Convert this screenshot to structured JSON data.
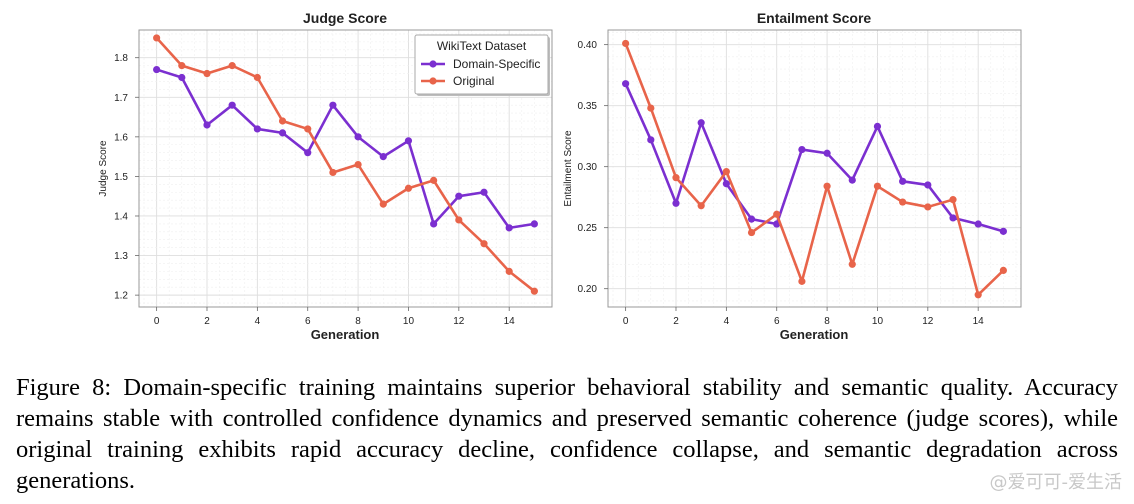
{
  "chart_data": [
    {
      "type": "line",
      "title": "Judge Score",
      "xlabel": "Generation",
      "ylabel": "Judge Score",
      "x": [
        0,
        1,
        2,
        3,
        4,
        5,
        6,
        7,
        8,
        9,
        10,
        11,
        12,
        13,
        14,
        15
      ],
      "xticks": [
        0,
        2,
        4,
        6,
        8,
        10,
        12,
        14
      ],
      "yticks": [
        1.2,
        1.3,
        1.4,
        1.5,
        1.6,
        1.7,
        1.8
      ],
      "ytick_decimals": 1,
      "xlim": [
        -0.7,
        15.7
      ],
      "ylim": [
        1.17,
        1.87
      ],
      "grid": true,
      "legend": {
        "title": "WikiText Dataset",
        "placement": "top-right"
      },
      "series": [
        {
          "name": "Domain-Specific",
          "color": "#7b2fd0",
          "values": [
            1.77,
            1.75,
            1.63,
            1.68,
            1.62,
            1.61,
            1.56,
            1.68,
            1.6,
            1.55,
            1.59,
            1.38,
            1.45,
            1.46,
            1.37,
            1.38
          ]
        },
        {
          "name": "Original",
          "color": "#e8644a",
          "values": [
            1.85,
            1.78,
            1.76,
            1.78,
            1.75,
            1.64,
            1.62,
            1.51,
            1.53,
            1.43,
            1.47,
            1.49,
            1.39,
            1.33,
            1.26,
            1.21
          ]
        }
      ]
    },
    {
      "type": "line",
      "title": "Entailment Score",
      "xlabel": "Generation",
      "ylabel": "Entailment Score",
      "x": [
        0,
        1,
        2,
        3,
        4,
        5,
        6,
        7,
        8,
        9,
        10,
        11,
        12,
        13,
        14,
        15
      ],
      "xticks": [
        0,
        2,
        4,
        6,
        8,
        10,
        12,
        14
      ],
      "yticks": [
        0.2,
        0.25,
        0.3,
        0.35,
        0.4
      ],
      "ytick_decimals": 2,
      "xlim": [
        -0.7,
        15.7
      ],
      "ylim": [
        0.185,
        0.412
      ],
      "grid": true,
      "series": [
        {
          "name": "Domain-Specific",
          "color": "#7b2fd0",
          "values": [
            0.368,
            0.322,
            0.27,
            0.336,
            0.286,
            0.257,
            0.253,
            0.314,
            0.311,
            0.289,
            0.333,
            0.288,
            0.285,
            0.258,
            0.253,
            0.247
          ]
        },
        {
          "name": "Original",
          "color": "#e8644a",
          "values": [
            0.401,
            0.348,
            0.291,
            0.268,
            0.296,
            0.246,
            0.261,
            0.206,
            0.284,
            0.22,
            0.284,
            0.271,
            0.267,
            0.273,
            0.195,
            0.215
          ]
        }
      ]
    }
  ],
  "caption": "Figure 8: Domain-specific training maintains superior behavioral stability and semantic quality. Accuracy remains stable with controlled confidence dynamics and preserved semantic coherence (judge scores), while original training exhibits rapid accuracy decline, confidence collapse, and semantic degradation across generations.",
  "watermark": "@爱可可-爱生活"
}
